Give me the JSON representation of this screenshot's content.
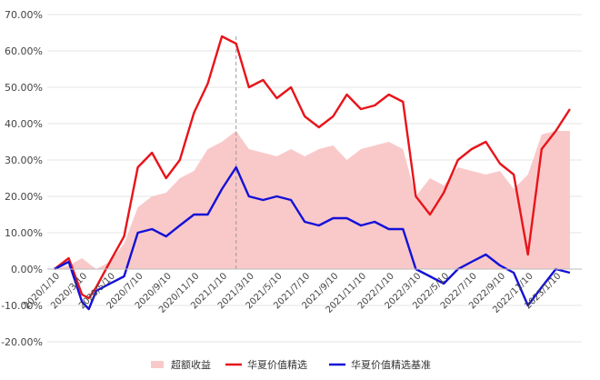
{
  "chart_data": {
    "type": "line",
    "y_unit": "%",
    "ylim": [
      -20,
      70
    ],
    "ytick_labels": [
      "70.00%",
      "60.00%",
      "50.00%",
      "40.00%",
      "30.00%",
      "20.00%",
      "10.00%",
      "0.00%",
      "-10.00%",
      "-20.00%"
    ],
    "ytick_values": [
      70,
      60,
      50,
      40,
      30,
      20,
      10,
      0,
      -10,
      -20
    ],
    "x_labels": [
      "2020/1/10",
      "2020/3/10",
      "2020/5/10",
      "2020/7/10",
      "2020/9/10",
      "2020/11/10",
      "2021/1/10",
      "2021/3/10",
      "2021/5/10",
      "2021/7/10",
      "2021/9/10",
      "2021/11/10",
      "2022/1/10",
      "2022/3/10",
      "2022/5/10",
      "2022/7/10",
      "2022/9/10",
      "2022/11/10",
      "2023/1/10"
    ],
    "grid": "horizontal",
    "legend_position": "bottom",
    "reference_line_date": "2021/2/10",
    "series": [
      {
        "name": "超额收益",
        "style": "area",
        "color": "#f9c9c9",
        "x": [
          "2020/1/10",
          "2020/2/10",
          "2020/3/10",
          "2020/4/10",
          "2020/5/10",
          "2020/6/10",
          "2020/7/10",
          "2020/8/10",
          "2020/9/10",
          "2020/10/10",
          "2020/11/10",
          "2020/12/10",
          "2021/1/10",
          "2021/2/10",
          "2021/3/10",
          "2021/4/10",
          "2021/5/10",
          "2021/6/10",
          "2021/7/10",
          "2021/8/10",
          "2021/9/10",
          "2021/10/10",
          "2021/11/10",
          "2021/12/10",
          "2022/1/10",
          "2022/2/10",
          "2022/3/10",
          "2022/4/10",
          "2022/5/10",
          "2022/6/10",
          "2022/7/10",
          "2022/8/10",
          "2022/9/10",
          "2022/10/10",
          "2022/11/10",
          "2022/12/10",
          "2023/1/10",
          "2023/2/10"
        ],
        "values": [
          0,
          1,
          3,
          0,
          2,
          7,
          17,
          20,
          21,
          25,
          27,
          33,
          35,
          38,
          33,
          32,
          31,
          33,
          31,
          33,
          34,
          30,
          33,
          34,
          35,
          33,
          20,
          25,
          23,
          28,
          27,
          26,
          27,
          22,
          26,
          37,
          38,
          38
        ]
      },
      {
        "name": "华夏价值精选",
        "style": "line",
        "color": "#e8141a",
        "x": [
          "2020/1/10",
          "2020/2/10",
          "2020/3/10",
          "2020/3/25",
          "2020/4/10",
          "2020/5/10",
          "2020/6/10",
          "2020/7/10",
          "2020/8/10",
          "2020/9/10",
          "2020/10/10",
          "2020/11/10",
          "2020/12/10",
          "2021/1/10",
          "2021/2/10",
          "2021/3/10",
          "2021/4/10",
          "2021/5/10",
          "2021/6/10",
          "2021/7/10",
          "2021/8/10",
          "2021/9/10",
          "2021/10/10",
          "2021/11/10",
          "2021/12/10",
          "2022/1/10",
          "2022/2/10",
          "2022/3/10",
          "2022/4/10",
          "2022/5/10",
          "2022/6/10",
          "2022/7/10",
          "2022/8/10",
          "2022/9/10",
          "2022/10/10",
          "2022/11/10",
          "2022/12/10",
          "2023/1/10",
          "2023/2/10"
        ],
        "values": [
          0,
          3,
          -7,
          -8,
          -5,
          2,
          9,
          28,
          32,
          25,
          30,
          43,
          51,
          64,
          62,
          50,
          52,
          47,
          50,
          42,
          39,
          42,
          48,
          44,
          45,
          48,
          46,
          20,
          15,
          21,
          30,
          33,
          35,
          29,
          26,
          4,
          33,
          38,
          44
        ]
      },
      {
        "name": "华夏价值精选基准",
        "style": "line",
        "color": "#1411d8",
        "x": [
          "2020/1/10",
          "2020/2/10",
          "2020/3/10",
          "2020/3/25",
          "2020/4/10",
          "2020/5/10",
          "2020/6/10",
          "2020/7/10",
          "2020/8/10",
          "2020/9/10",
          "2020/10/10",
          "2020/11/10",
          "2020/12/10",
          "2021/1/10",
          "2021/2/10",
          "2021/3/10",
          "2021/4/10",
          "2021/5/10",
          "2021/6/10",
          "2021/7/10",
          "2021/8/10",
          "2021/9/10",
          "2021/10/10",
          "2021/11/10",
          "2021/12/10",
          "2022/1/10",
          "2022/2/10",
          "2022/3/10",
          "2022/4/10",
          "2022/5/10",
          "2022/6/10",
          "2022/7/10",
          "2022/8/10",
          "2022/9/10",
          "2022/10/10",
          "2022/11/10",
          "2022/12/10",
          "2023/1/10",
          "2023/2/10"
        ],
        "values": [
          0,
          2,
          -9,
          -11,
          -6,
          -4,
          -2,
          10,
          11,
          9,
          12,
          15,
          15,
          22,
          28,
          20,
          19,
          20,
          19,
          13,
          12,
          14,
          14,
          12,
          13,
          11,
          11,
          0,
          -2,
          -4,
          0,
          2,
          4,
          1,
          -1,
          -10,
          -5,
          0,
          -1
        ]
      }
    ]
  }
}
